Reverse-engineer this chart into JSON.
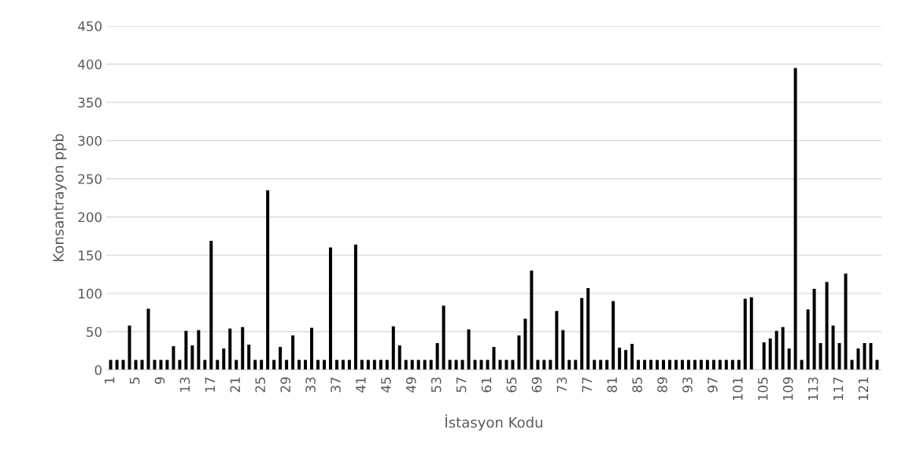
{
  "chart_data": {
    "type": "bar",
    "xlabel": "İstasyon Kodu",
    "ylabel": "Konsantrayon ppb",
    "categories": [
      "1",
      null,
      null,
      null,
      "5",
      null,
      null,
      null,
      "9",
      null,
      null,
      null,
      "13",
      null,
      null,
      null,
      "17",
      null,
      null,
      null,
      "21",
      null,
      null,
      null,
      "25",
      null,
      null,
      null,
      "29",
      null,
      null,
      null,
      "33",
      null,
      null,
      null,
      "37",
      null,
      null,
      null,
      "41",
      null,
      null,
      null,
      "45",
      null,
      null,
      null,
      "49",
      null,
      null,
      null,
      "53",
      null,
      null,
      null,
      "57",
      null,
      null,
      null,
      "61",
      null,
      null,
      null,
      "65",
      null,
      null,
      null,
      "69",
      null,
      null,
      null,
      "73",
      null,
      null,
      null,
      "77",
      null,
      null,
      null,
      "81",
      null,
      null,
      null,
      "85",
      null,
      null,
      null,
      "89",
      null,
      null,
      null,
      "93",
      null,
      null,
      null,
      "97",
      null,
      null,
      null,
      "101",
      null,
      null,
      null,
      "105",
      null,
      null,
      null,
      "109",
      null,
      null,
      null,
      "113",
      null,
      null,
      null,
      "117",
      null,
      null,
      null,
      "121",
      null,
      null
    ],
    "values": [
      13,
      13,
      13,
      58,
      13,
      13,
      80,
      13,
      13,
      13,
      31,
      13,
      51,
      32,
      52,
      13,
      169,
      13,
      28,
      54,
      13,
      56,
      33,
      13,
      13,
      235,
      13,
      30,
      13,
      45,
      13,
      13,
      55,
      13,
      13,
      160,
      13,
      13,
      13,
      164,
      13,
      13,
      13,
      13,
      13,
      57,
      32,
      13,
      13,
      13,
      13,
      13,
      35,
      84,
      13,
      13,
      13,
      53,
      13,
      13,
      13,
      30,
      13,
      13,
      13,
      45,
      67,
      130,
      13,
      13,
      13,
      77,
      52,
      13,
      13,
      94,
      107,
      13,
      13,
      13,
      90,
      29,
      26,
      34,
      13,
      13,
      13,
      13,
      13,
      13,
      13,
      13,
      13,
      13,
      13,
      13,
      13,
      13,
      13,
      13,
      13,
      93,
      95,
      null,
      36,
      41,
      51,
      56,
      28,
      395,
      13,
      79,
      106,
      35,
      115,
      58,
      35,
      126,
      13,
      28,
      35,
      35,
      13
    ],
    "color": "#000000",
    "ylim": [
      0,
      450
    ],
    "yticks": [
      0,
      50,
      100,
      150,
      200,
      250,
      300,
      350,
      400,
      450
    ],
    "grid": "y"
  }
}
